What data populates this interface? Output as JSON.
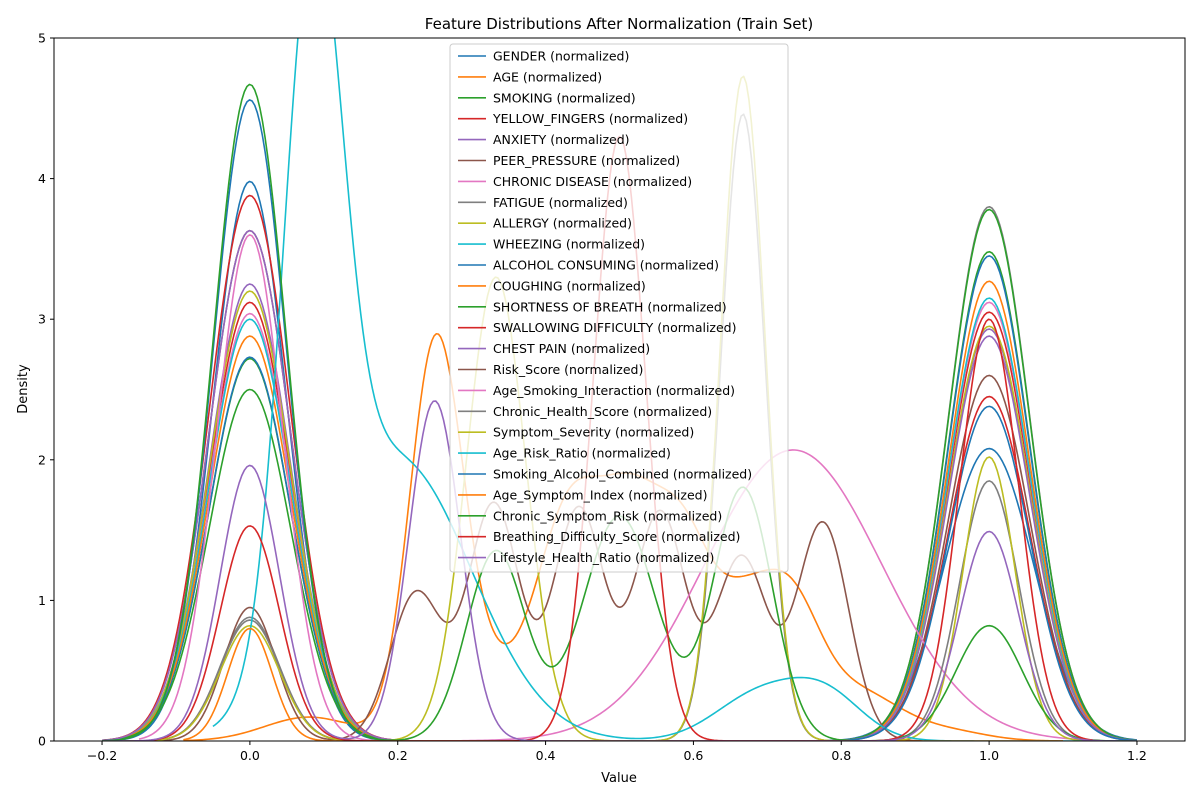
{
  "chart_data": {
    "type": "line",
    "title": "Feature Distributions After Normalization (Train Set)",
    "xlabel": "Value",
    "ylabel": "Density",
    "xlim": [
      -0.265,
      1.265
    ],
    "ylim": [
      0,
      5
    ],
    "xticks": [
      -0.2,
      0.0,
      0.2,
      0.4,
      0.6,
      0.8,
      1.0,
      1.2
    ],
    "xtick_labels": [
      "−0.2",
      "0.0",
      "0.2",
      "0.4",
      "0.6",
      "0.8",
      "1.0",
      "1.2"
    ],
    "yticks": [
      0,
      1,
      2,
      3,
      4,
      5
    ],
    "ytick_labels": [
      "0",
      "1",
      "2",
      "3",
      "4",
      "5"
    ],
    "grid": false,
    "legend_position": "upper center",
    "series": [
      {
        "name": "GENDER (normalized)",
        "color": "#1f77b4",
        "xrange": [
          -0.2,
          1.2
        ],
        "peaks": [
          [
            0.0,
            3.98,
            0.05
          ],
          [
            1.0,
            2.08,
            0.06
          ]
        ]
      },
      {
        "name": "AGE (normalized)",
        "color": "#ff7f0e",
        "xrange": [
          -0.09,
          1.1
        ],
        "peaks": [
          [
            0.08,
            0.17,
            0.06
          ],
          [
            0.25,
            2.55,
            0.035
          ],
          [
            0.3,
            0.55,
            0.05
          ],
          [
            0.43,
            1.55,
            0.045
          ],
          [
            0.52,
            1.55,
            0.045
          ],
          [
            0.59,
            1.0,
            0.035
          ],
          [
            0.66,
            0.82,
            0.04
          ],
          [
            0.73,
            0.88,
            0.04
          ],
          [
            0.82,
            0.35,
            0.06
          ],
          [
            0.95,
            0.06,
            0.05
          ]
        ]
      },
      {
        "name": "SMOKING (normalized)",
        "color": "#2ca02c",
        "xrange": [
          -0.2,
          1.2
        ],
        "peaks": [
          [
            0.0,
            2.72,
            0.055
          ],
          [
            1.0,
            3.48,
            0.055
          ]
        ]
      },
      {
        "name": "YELLOW_FINGERS (normalized)",
        "color": "#d62728",
        "xrange": [
          -0.2,
          1.2
        ],
        "peaks": [
          [
            0.0,
            3.12,
            0.055
          ],
          [
            1.0,
            3.05,
            0.055
          ]
        ]
      },
      {
        "name": "ANXIETY (normalized)",
        "color": "#9467bd",
        "xrange": [
          -0.2,
          1.2
        ],
        "peaks": [
          [
            0.0,
            3.25,
            0.055
          ],
          [
            1.0,
            2.93,
            0.055
          ]
        ]
      },
      {
        "name": "PEER_PRESSURE (normalized)",
        "color": "#8c564b",
        "xrange": [
          -0.2,
          1.2
        ],
        "peaks": [
          [
            0.0,
            3.63,
            0.055
          ],
          [
            1.0,
            2.6,
            0.055
          ]
        ]
      },
      {
        "name": "CHRONIC DISEASE (normalized)",
        "color": "#e377c2",
        "xrange": [
          -0.2,
          1.2
        ],
        "peaks": [
          [
            0.0,
            3.04,
            0.055
          ],
          [
            1.0,
            3.12,
            0.055
          ]
        ]
      },
      {
        "name": "FATIGUE  (normalized)",
        "color": "#7f7f7f",
        "xrange": [
          -0.2,
          1.2
        ],
        "peaks": [
          [
            0.0,
            0.88,
            0.04
          ],
          [
            1.0,
            3.8,
            0.055
          ]
        ]
      },
      {
        "name": "ALLERGY  (normalized)",
        "color": "#bcbd22",
        "xrange": [
          -0.2,
          1.2
        ],
        "peaks": [
          [
            0.0,
            3.2,
            0.055
          ],
          [
            1.0,
            2.95,
            0.055
          ]
        ]
      },
      {
        "name": "WHEEZING (normalized)",
        "color": "#17becf",
        "xrange": [
          -0.2,
          1.2
        ],
        "peaks": [
          [
            0.0,
            3.0,
            0.055
          ],
          [
            1.0,
            3.15,
            0.055
          ]
        ]
      },
      {
        "name": "ALCOHOL CONSUMING (normalized)",
        "color": "#1f77b4",
        "xrange": [
          -0.2,
          1.2
        ],
        "peaks": [
          [
            0.0,
            2.73,
            0.055
          ],
          [
            1.0,
            3.45,
            0.055
          ]
        ]
      },
      {
        "name": "COUGHING (normalized)",
        "color": "#ff7f0e",
        "xrange": [
          -0.2,
          1.2
        ],
        "peaks": [
          [
            0.0,
            2.88,
            0.055
          ],
          [
            1.0,
            3.27,
            0.055
          ]
        ]
      },
      {
        "name": "SHORTNESS OF BREATH (normalized)",
        "color": "#2ca02c",
        "xrange": [
          -0.2,
          1.2
        ],
        "peaks": [
          [
            0.0,
            2.5,
            0.055
          ],
          [
            1.0,
            3.78,
            0.055
          ]
        ]
      },
      {
        "name": "SWALLOWING DIFFICULTY (normalized)",
        "color": "#d62728",
        "xrange": [
          -0.2,
          1.2
        ],
        "peaks": [
          [
            0.0,
            3.88,
            0.055
          ],
          [
            1.0,
            2.45,
            0.055
          ]
        ]
      },
      {
        "name": "CHEST PAIN (normalized)",
        "color": "#9467bd",
        "xrange": [
          -0.2,
          1.2
        ],
        "peaks": [
          [
            0.0,
            3.63,
            0.055
          ],
          [
            1.0,
            2.88,
            0.055
          ]
        ]
      },
      {
        "name": "Risk_Score (normalized)",
        "color": "#8c564b",
        "xrange": [
          -0.12,
          0.91
        ],
        "peaks": [
          [
            0.0,
            0.95,
            0.035
          ],
          [
            0.225,
            1.05,
            0.035
          ],
          [
            0.33,
            1.68,
            0.035
          ],
          [
            0.445,
            1.65,
            0.035
          ],
          [
            0.555,
            1.62,
            0.035
          ],
          [
            0.665,
            1.3,
            0.035
          ],
          [
            0.775,
            1.55,
            0.035
          ]
        ]
      },
      {
        "name": "Age_Smoking_Interaction (normalized)",
        "color": "#e377c2",
        "xrange": [
          -0.15,
          1.15
        ],
        "peaks": [
          [
            0.0,
            3.6,
            0.045
          ],
          [
            0.735,
            2.07,
            0.12
          ]
        ]
      },
      {
        "name": "Chronic_Health_Score (normalized)",
        "color": "#7f7f7f",
        "xrange": [
          -0.2,
          1.2
        ],
        "peaks": [
          [
            0.0,
            0.86,
            0.04
          ],
          [
            0.667,
            4.46,
            0.03
          ],
          [
            1.0,
            1.85,
            0.04
          ]
        ]
      },
      {
        "name": "Symptom_Severity (normalized)",
        "color": "#bcbd22",
        "xrange": [
          -0.2,
          1.2
        ],
        "peaks": [
          [
            0.0,
            0.82,
            0.04
          ],
          [
            0.333,
            3.3,
            0.04
          ],
          [
            0.667,
            4.73,
            0.03
          ],
          [
            1.0,
            2.02,
            0.035
          ]
        ]
      },
      {
        "name": "Age_Risk_Ratio (normalized)",
        "color": "#17becf",
        "xrange": [
          -0.05,
          1.2
        ],
        "peaks": [
          [
            0.085,
            4.76,
            0.04
          ],
          [
            0.2,
            2.0,
            0.1
          ],
          [
            0.69,
            0.33,
            0.06
          ],
          [
            0.78,
            0.3,
            0.05
          ]
        ]
      },
      {
        "name": "Smoking_Alcohol_Combined (normalized)",
        "color": "#1f77b4",
        "xrange": [
          -0.2,
          1.2
        ],
        "peaks": [
          [
            0.0,
            4.56,
            0.05
          ],
          [
            1.0,
            2.38,
            0.055
          ]
        ]
      },
      {
        "name": "Age_Symptom_Index (normalized)",
        "color": "#ff7f0e",
        "xrange": [
          -0.09,
          1.1
        ],
        "peaks": [
          [
            0.0,
            0.8,
            0.03
          ]
        ]
      },
      {
        "name": "Chronic_Symptom_Risk (normalized)",
        "color": "#2ca02c",
        "xrange": [
          -0.2,
          1.2
        ],
        "peaks": [
          [
            0.0,
            4.67,
            0.05
          ],
          [
            0.333,
            1.35,
            0.04
          ],
          [
            0.5,
            1.6,
            0.05
          ],
          [
            0.667,
            1.8,
            0.04
          ],
          [
            1.0,
            0.82,
            0.045
          ]
        ]
      },
      {
        "name": "Breathing_Difficulty_Score (normalized)",
        "color": "#d62728",
        "xrange": [
          -0.14,
          1.14
        ],
        "peaks": [
          [
            0.0,
            1.53,
            0.04
          ],
          [
            0.5,
            4.3,
            0.035
          ],
          [
            1.0,
            3.0,
            0.04
          ]
        ]
      },
      {
        "name": "Lifestyle_Health_Ratio (normalized)",
        "color": "#9467bd",
        "xrange": [
          -0.2,
          1.2
        ],
        "peaks": [
          [
            0.0,
            1.96,
            0.04
          ],
          [
            0.25,
            2.42,
            0.035
          ],
          [
            1.0,
            1.49,
            0.04
          ]
        ]
      }
    ]
  }
}
